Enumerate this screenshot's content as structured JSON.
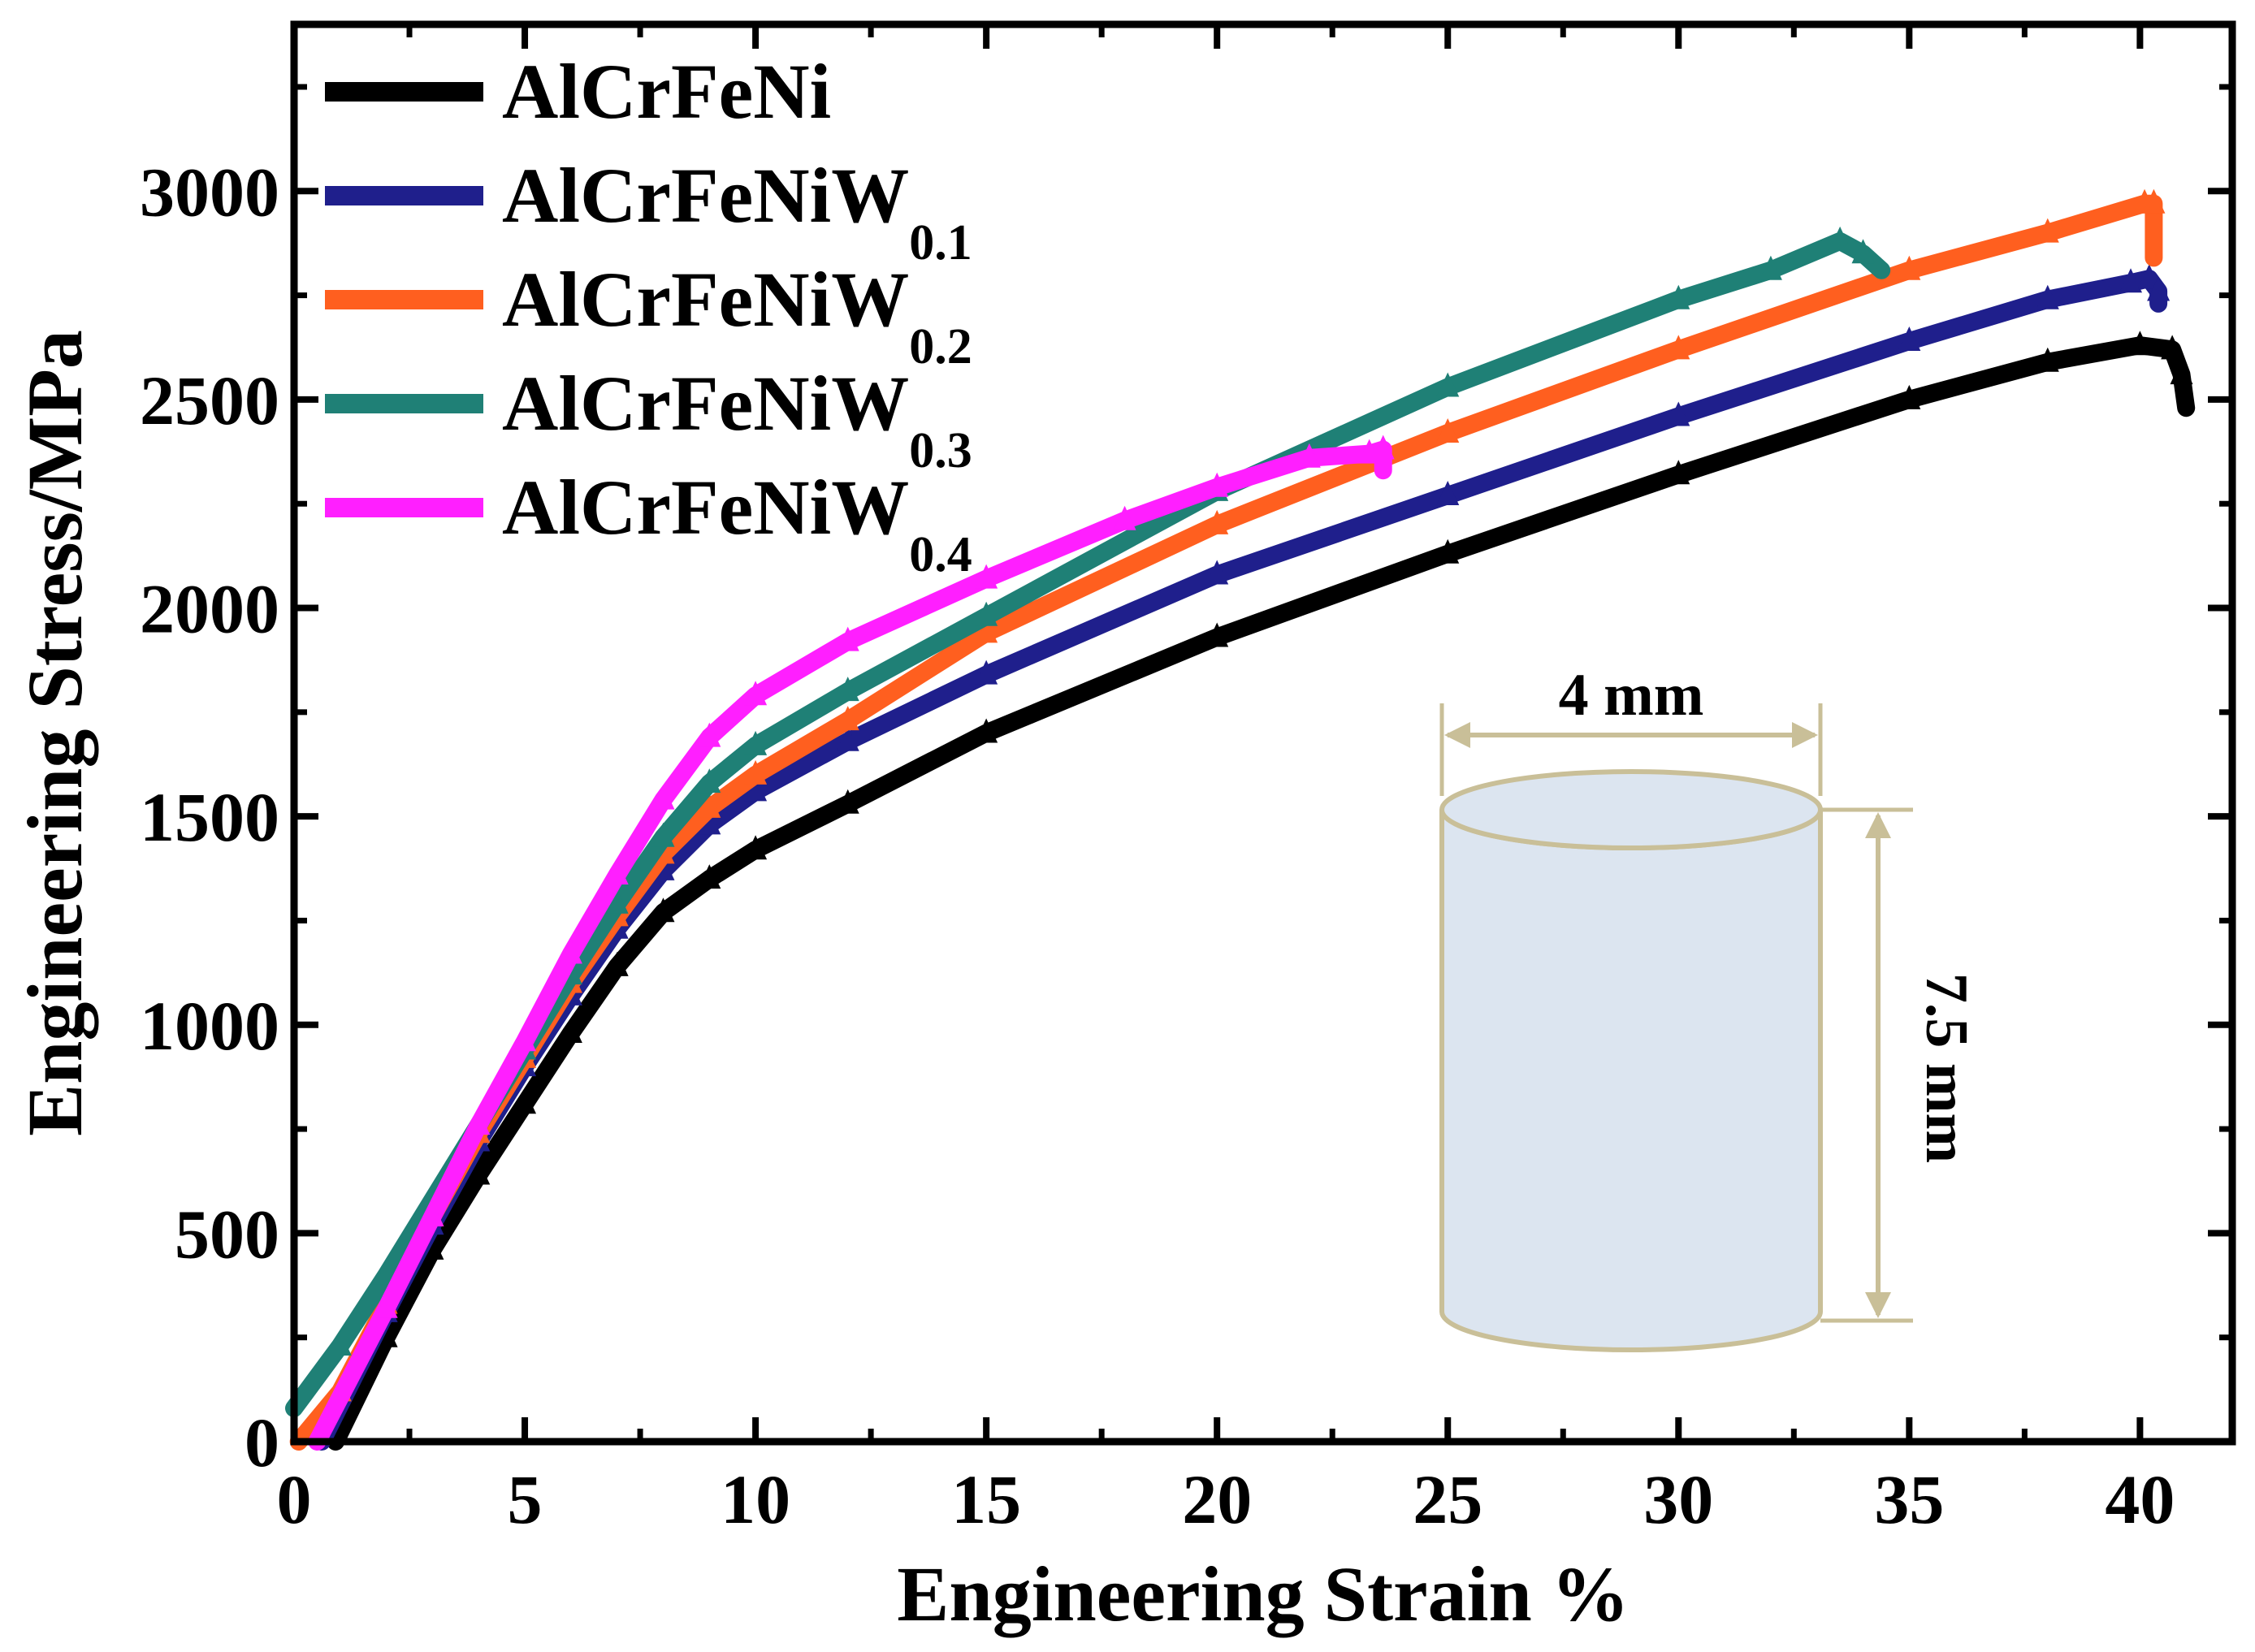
{
  "chart_data": {
    "type": "line",
    "title": "",
    "xlabel": "Engineering Strain %",
    "ylabel": "Engineering Stress/MPa",
    "xlim": [
      0,
      42
    ],
    "ylim": [
      0,
      3400
    ],
    "xticks": [
      0,
      5,
      10,
      15,
      20,
      25,
      30,
      35,
      40
    ],
    "yticks": [
      0,
      500,
      1000,
      1500,
      2000,
      2500,
      3000
    ],
    "legend_position": "top-left",
    "series": [
      {
        "name": "AlCrFeNi",
        "base": "AlCrFeNi",
        "sub": "",
        "color": "#000000",
        "x": [
          0.9,
          2,
          3,
          4,
          5,
          6,
          7,
          8,
          9,
          10,
          12,
          15,
          20,
          25,
          30,
          35,
          38,
          40,
          40.7,
          40.9,
          41.0
        ],
        "y": [
          0,
          250,
          460,
          640,
          810,
          980,
          1140,
          1270,
          1350,
          1420,
          1530,
          1700,
          1930,
          2130,
          2320,
          2500,
          2590,
          2630,
          2620,
          2560,
          2480
        ]
      },
      {
        "name": "AlCrFeNiW0.1",
        "base": "AlCrFeNiW",
        "sub": "0.1",
        "color": "#1f1f8c",
        "x": [
          0.6,
          2,
          3,
          4,
          5,
          6,
          7,
          8,
          9,
          10,
          12,
          15,
          20,
          25,
          30,
          35,
          38,
          39.8,
          40.2,
          40.4,
          40.4
        ],
        "y": [
          0,
          310,
          520,
          720,
          900,
          1070,
          1230,
          1370,
          1480,
          1560,
          1680,
          1840,
          2080,
          2270,
          2460,
          2640,
          2740,
          2780,
          2790,
          2760,
          2730
        ]
      },
      {
        "name": "AlCrFeNiW0.2",
        "base": "AlCrFeNiW",
        "sub": "0.2",
        "color": "#ff5f1f",
        "x": [
          0.1,
          1,
          2,
          3,
          4,
          5,
          6,
          7,
          8,
          9,
          10,
          12,
          15,
          20,
          25,
          30,
          35,
          38,
          40.1,
          40.3,
          40.3
        ],
        "y": [
          0,
          120,
          330,
          540,
          740,
          920,
          1100,
          1260,
          1410,
          1520,
          1600,
          1730,
          1940,
          2200,
          2420,
          2620,
          2810,
          2900,
          2970,
          2970,
          2840
        ]
      },
      {
        "name": "AlCrFeNiW0.3",
        "base": "AlCrFeNiW",
        "sub": "0.3",
        "color": "#1f8076",
        "x": [
          0,
          1,
          2,
          3,
          4,
          5,
          6,
          7,
          8,
          9,
          10,
          12,
          15,
          20,
          25,
          30,
          32,
          33.5,
          34.0,
          34.4
        ],
        "y": [
          80,
          230,
          400,
          580,
          760,
          940,
          1120,
          1290,
          1450,
          1580,
          1670,
          1800,
          1980,
          2280,
          2530,
          2740,
          2810,
          2880,
          2850,
          2810
        ]
      },
      {
        "name": "AlCrFeNiW0.4",
        "base": "AlCrFeNiW",
        "sub": "0.4",
        "color": "#ff1fff",
        "x": [
          0.5,
          2,
          3,
          4,
          5,
          6,
          7,
          8,
          9,
          10,
          12,
          15,
          18,
          20,
          22,
          23.3,
          23.6,
          23.6
        ],
        "y": [
          0,
          320,
          540,
          760,
          960,
          1170,
          1360,
          1540,
          1690,
          1790,
          1920,
          2070,
          2210,
          2290,
          2360,
          2370,
          2380,
          2330
        ]
      }
    ],
    "annotations": [
      {
        "name": "diameter",
        "text": "4 mm"
      },
      {
        "name": "height",
        "text": "7.5 mm"
      }
    ]
  }
}
